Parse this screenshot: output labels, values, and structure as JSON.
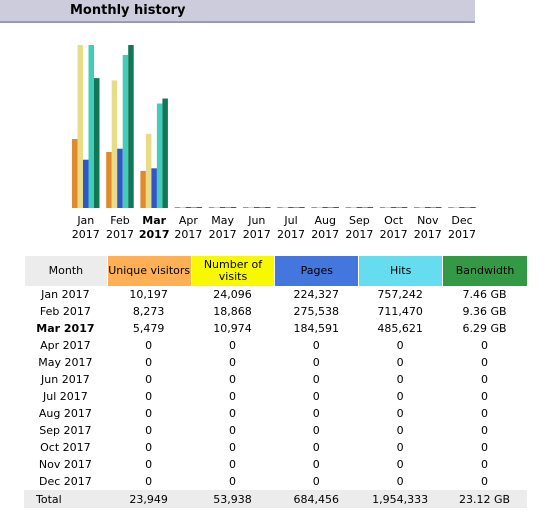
{
  "header": {
    "title": "Monthly history"
  },
  "chart_data": {
    "type": "bar",
    "categories": [
      "Jan",
      "Feb",
      "Mar",
      "Apr",
      "May",
      "Jun",
      "Jul",
      "Aug",
      "Sep",
      "Oct",
      "Nov",
      "Dec"
    ],
    "years": [
      "2017",
      "2017",
      "2017",
      "2017",
      "2017",
      "2017",
      "2017",
      "2017",
      "2017",
      "2017",
      "2017",
      "2017"
    ],
    "current_month_index": 2,
    "series": [
      {
        "name": "Unique visitors",
        "color": "#ffb055",
        "values": [
          10197,
          8273,
          5479,
          0,
          0,
          0,
          0,
          0,
          0,
          0,
          0,
          0
        ]
      },
      {
        "name": "Number of visits",
        "color": "#f8f800",
        "values": [
          24096,
          18868,
          10974,
          0,
          0,
          0,
          0,
          0,
          0,
          0,
          0,
          0
        ]
      },
      {
        "name": "Pages",
        "color": "#4477dd",
        "values": [
          224327,
          275538,
          184591,
          0,
          0,
          0,
          0,
          0,
          0,
          0,
          0,
          0
        ]
      },
      {
        "name": "Hits",
        "color": "#66ddee",
        "values": [
          757242,
          711470,
          485621,
          0,
          0,
          0,
          0,
          0,
          0,
          0,
          0,
          0
        ]
      },
      {
        "name": "Bandwidth",
        "color": "#2ea495",
        "values": [
          7.46,
          9.36,
          6.29,
          0,
          0,
          0,
          0,
          0,
          0,
          0,
          0,
          0
        ]
      }
    ],
    "scale_max": [
      24096,
      24096,
      757242,
      757242,
      9.36
    ]
  },
  "table": {
    "headers": {
      "month": "Month",
      "unique_visitors": "Unique visitors",
      "visits": "Number of visits",
      "pages": "Pages",
      "hits": "Hits",
      "bandwidth": "Bandwidth"
    },
    "rows": [
      {
        "month": "Jan 2017",
        "uv": "10,197",
        "visits": "24,096",
        "pages": "224,327",
        "hits": "757,242",
        "bw": "7.46 GB"
      },
      {
        "month": "Feb 2017",
        "uv": "8,273",
        "visits": "18,868",
        "pages": "275,538",
        "hits": "711,470",
        "bw": "9.36 GB"
      },
      {
        "month": "Mar 2017",
        "uv": "5,479",
        "visits": "10,974",
        "pages": "184,591",
        "hits": "485,621",
        "bw": "6.29 GB"
      },
      {
        "month": "Apr 2017",
        "uv": "0",
        "visits": "0",
        "pages": "0",
        "hits": "0",
        "bw": "0"
      },
      {
        "month": "May 2017",
        "uv": "0",
        "visits": "0",
        "pages": "0",
        "hits": "0",
        "bw": "0"
      },
      {
        "month": "Jun 2017",
        "uv": "0",
        "visits": "0",
        "pages": "0",
        "hits": "0",
        "bw": "0"
      },
      {
        "month": "Jul 2017",
        "uv": "0",
        "visits": "0",
        "pages": "0",
        "hits": "0",
        "bw": "0"
      },
      {
        "month": "Aug 2017",
        "uv": "0",
        "visits": "0",
        "pages": "0",
        "hits": "0",
        "bw": "0"
      },
      {
        "month": "Sep 2017",
        "uv": "0",
        "visits": "0",
        "pages": "0",
        "hits": "0",
        "bw": "0"
      },
      {
        "month": "Oct 2017",
        "uv": "0",
        "visits": "0",
        "pages": "0",
        "hits": "0",
        "bw": "0"
      },
      {
        "month": "Nov 2017",
        "uv": "0",
        "visits": "0",
        "pages": "0",
        "hits": "0",
        "bw": "0"
      },
      {
        "month": "Dec 2017",
        "uv": "0",
        "visits": "0",
        "pages": "0",
        "hits": "0",
        "bw": "0"
      }
    ],
    "total": {
      "label": "Total",
      "uv": "23,949",
      "visits": "53,938",
      "pages": "684,456",
      "hits": "1,954,333",
      "bw": "23.12 GB"
    }
  }
}
